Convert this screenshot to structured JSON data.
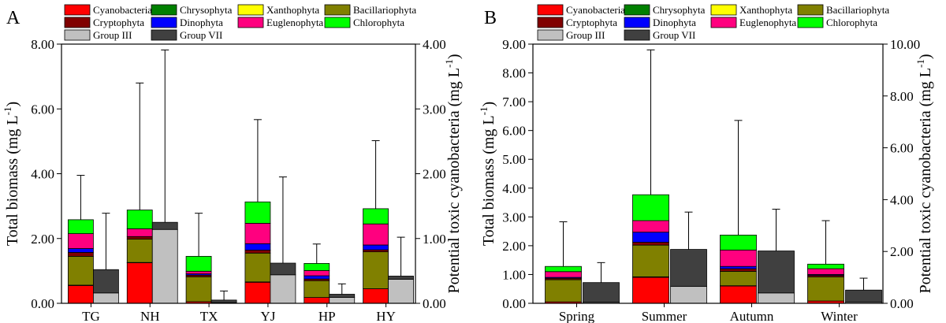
{
  "figure_labels": [
    "A",
    "B"
  ],
  "chart_data": [
    {
      "type": "bar",
      "panel": "A",
      "categories": [
        "TG",
        "NH",
        "TX",
        "YJ",
        "HP",
        "HY"
      ],
      "ylabel": "Total biomass (mg L^-1)",
      "ylabel_base": "Total biomass (mg L",
      "ylabel_exp": "-1",
      "ylabel_end": ")",
      "y2label": "Potential toxic cyanobacteria (mg L^-1)",
      "y2label_base": "Potential toxic cyanobacteria (mg L",
      "y2label_exp": "-1",
      "y2label_end": ")",
      "ylim": [
        0,
        8
      ],
      "y_ticks": [
        "0.00",
        "2.00",
        "4.00",
        "6.00",
        "8.00"
      ],
      "y2lim": [
        0,
        4
      ],
      "y2_ticks": [
        "0.00",
        "1.00",
        "2.00",
        "3.00",
        "4.00"
      ],
      "legend": [
        {
          "name": "Cyanobacteria",
          "color": "#ff0000"
        },
        {
          "name": "Chrysophyta",
          "color": "#008000"
        },
        {
          "name": "Xanthophyta",
          "color": "#ffff00"
        },
        {
          "name": "Bacillariophyta",
          "color": "#808000"
        },
        {
          "name": "Cryptophyta",
          "color": "#800000"
        },
        {
          "name": "Dinophyta",
          "color": "#0000ff"
        },
        {
          "name": "Euglenophyta",
          "color": "#ff007f"
        },
        {
          "name": "Chlorophyta",
          "color": "#00ff00"
        },
        {
          "name": "Group III",
          "color": "#c0c0c0"
        },
        {
          "name": "Group VII",
          "color": "#404040"
        }
      ],
      "stacked_series": [
        {
          "name": "Cyanobacteria",
          "color": "#ff0000",
          "values": [
            0.55,
            1.25,
            0.05,
            0.65,
            0.18,
            0.45
          ]
        },
        {
          "name": "Chrysophyta",
          "color": "#008000",
          "values": [
            0.01,
            0.01,
            0.0,
            0.01,
            0.0,
            0.0
          ]
        },
        {
          "name": "Xanthophyta",
          "color": "#ffff00",
          "values": [
            0.0,
            0.0,
            0.0,
            0.0,
            0.0,
            0.0
          ]
        },
        {
          "name": "Bacillariophyta",
          "color": "#808000",
          "values": [
            0.89,
            0.72,
            0.77,
            0.89,
            0.52,
            1.14
          ]
        },
        {
          "name": "Cryptophyta",
          "color": "#800000",
          "values": [
            0.12,
            0.08,
            0.05,
            0.09,
            0.05,
            0.06
          ]
        },
        {
          "name": "Dinophyta",
          "color": "#0000ff",
          "values": [
            0.12,
            0.0,
            0.04,
            0.2,
            0.1,
            0.15
          ]
        },
        {
          "name": "Euglenophyta",
          "color": "#ff007f",
          "values": [
            0.46,
            0.24,
            0.08,
            0.63,
            0.16,
            0.65
          ]
        },
        {
          "name": "Chlorophyta",
          "color": "#00ff00",
          "values": [
            0.43,
            0.58,
            0.46,
            0.66,
            0.22,
            0.47
          ]
        }
      ],
      "total_error_top": [
        3.95,
        6.8,
        2.78,
        5.67,
        1.83,
        5.02
      ],
      "toxic_series": [
        {
          "name": "Group III",
          "color": "#c0c0c0",
          "values": [
            0.16,
            1.14,
            0.01,
            0.44,
            0.09,
            0.37
          ]
        },
        {
          "name": "Group VII",
          "color": "#404040",
          "values": [
            0.36,
            0.11,
            0.04,
            0.18,
            0.05,
            0.05
          ]
        }
      ],
      "toxic_error_top": [
        1.39,
        3.91,
        0.19,
        1.95,
        0.3,
        1.02
      ]
    },
    {
      "type": "bar",
      "panel": "B",
      "categories": [
        "Spring",
        "Summer",
        "Autumn",
        "Winter"
      ],
      "ylabel": "Total biomass (mg L^-1)",
      "ylabel_base": "Total biomass (mg L",
      "ylabel_exp": "-1",
      "ylabel_end": ")",
      "y2label": "Potential toxic cyanobacteria (mg L^-1)",
      "y2label_base": "Potential toxic cyanobacteria (mg L",
      "y2label_exp": "-1",
      "y2label_end": ")",
      "ylim": [
        0,
        9
      ],
      "y_ticks": [
        "0.00",
        "1.00",
        "2.00",
        "3.00",
        "4.00",
        "5.00",
        "6.00",
        "7.00",
        "8.00",
        "9.00"
      ],
      "y2lim": [
        0,
        10
      ],
      "y2_ticks": [
        "0.00",
        "2.00",
        "4.00",
        "6.00",
        "8.00",
        "10.00"
      ],
      "legend": [
        {
          "name": "Cyanobacteria",
          "color": "#ff0000"
        },
        {
          "name": "Chrysophyta",
          "color": "#008000"
        },
        {
          "name": "Xanthophyta",
          "color": "#ffff00"
        },
        {
          "name": "Bacillariophyta",
          "color": "#808000"
        },
        {
          "name": "Cryptophyta",
          "color": "#800000"
        },
        {
          "name": "Dinophyta",
          "color": "#0000ff"
        },
        {
          "name": "Euglenophyta",
          "color": "#ff007f"
        },
        {
          "name": "Chlorophyta",
          "color": "#00ff00"
        },
        {
          "name": "Group III",
          "color": "#c0c0c0"
        },
        {
          "name": "Group VII",
          "color": "#404040"
        }
      ],
      "stacked_series": [
        {
          "name": "Cyanobacteria",
          "color": "#ff0000",
          "values": [
            0.05,
            0.9,
            0.6,
            0.08
          ]
        },
        {
          "name": "Chrysophyta",
          "color": "#008000",
          "values": [
            0.0,
            0.02,
            0.01,
            0.0
          ]
        },
        {
          "name": "Xanthophyta",
          "color": "#ffff00",
          "values": [
            0.0,
            0.0,
            0.0,
            0.0
          ]
        },
        {
          "name": "Bacillariophyta",
          "color": "#808000",
          "values": [
            0.77,
            1.1,
            0.5,
            0.84
          ]
        },
        {
          "name": "Cryptophyta",
          "color": "#800000",
          "values": [
            0.05,
            0.1,
            0.09,
            0.05
          ]
        },
        {
          "name": "Dinophyta",
          "color": "#0000ff",
          "values": [
            0.03,
            0.35,
            0.08,
            0.03
          ]
        },
        {
          "name": "Euglenophyta",
          "color": "#ff007f",
          "values": [
            0.2,
            0.4,
            0.57,
            0.2
          ]
        },
        {
          "name": "Chlorophyta",
          "color": "#00ff00",
          "values": [
            0.18,
            0.9,
            0.52,
            0.16
          ]
        }
      ],
      "total_error_top": [
        2.83,
        8.8,
        6.35,
        2.87
      ],
      "toxic_series": [
        {
          "name": "Group III",
          "color": "#c0c0c0",
          "values": [
            0.04,
            0.65,
            0.4,
            0.05
          ]
        },
        {
          "name": "Group VII",
          "color": "#404040",
          "values": [
            0.76,
            1.43,
            1.62,
            0.46
          ]
        }
      ],
      "toxic_error_top": [
        1.57,
        3.52,
        3.63,
        0.97
      ]
    }
  ]
}
